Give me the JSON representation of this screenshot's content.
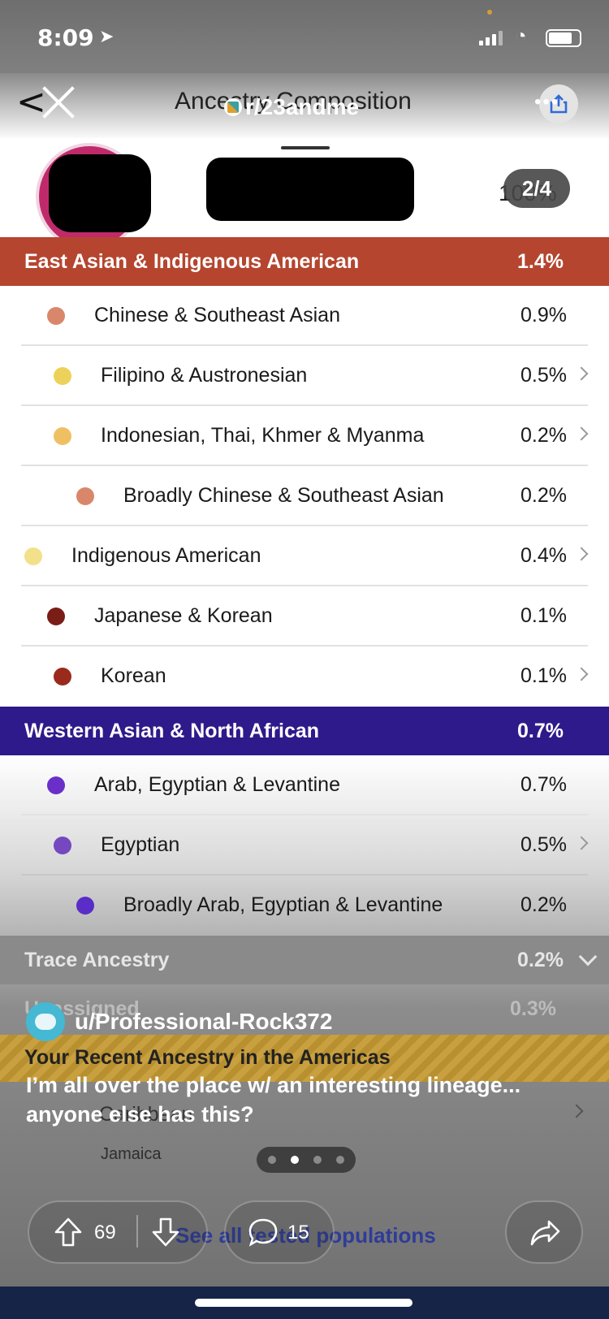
{
  "status_bar": {
    "time": "8:09"
  },
  "header": {
    "title": "Ancestry Composition",
    "subreddit": "r/23andme"
  },
  "profile": {
    "total_pct": "100%"
  },
  "carousel": {
    "counter": "2/4",
    "current": 2,
    "total": 4
  },
  "regions": {
    "east": {
      "label": "East Asian & Indigenous American",
      "pct": "1.4%",
      "color": "#b5452f",
      "rows": [
        {
          "label": "Chinese & Southeast Asian",
          "pct": "0.9%",
          "color": "#d9876a"
        },
        {
          "label": "Filipino & Austronesian",
          "pct": "0.5%",
          "color": "#ecd25a"
        },
        {
          "label": "Indonesian, Thai, Khmer & Myanma",
          "pct": "0.2%",
          "color": "#efc063"
        },
        {
          "label": "Broadly Chinese & Southeast Asian",
          "pct": "0.2%",
          "color": "#d9876a"
        },
        {
          "label": "Indigenous American",
          "pct": "0.4%",
          "color": "#f3e08a"
        },
        {
          "label": "Japanese & Korean",
          "pct": "0.1%",
          "color": "#7a1d17"
        },
        {
          "label": "Korean",
          "pct": "0.1%",
          "color": "#9a2a1c"
        }
      ]
    },
    "west": {
      "label": "Western Asian & North African",
      "pct": "0.7%",
      "color": "#2e1a8a",
      "rows": [
        {
          "label": "Arab, Egyptian & Levantine",
          "pct": "0.7%",
          "color": "#6a2fc8"
        },
        {
          "label": "Egyptian",
          "pct": "0.5%",
          "color": "#7548c0"
        },
        {
          "label": "Broadly Arab, Egyptian & Levantine",
          "pct": "0.2%",
          "color": "#5a2cc8"
        }
      ]
    },
    "trace": {
      "label": "Trace Ancestry",
      "pct": "0.2%"
    },
    "unassigned": {
      "label": "Unassigned",
      "pct": "0.3%"
    }
  },
  "americas": {
    "title": "Your Recent Ancestry in the Americas",
    "region": "Caribbean",
    "place": "Jamaica",
    "see_all": "See all tested populations"
  },
  "reddit": {
    "username": "u/Professional-Rock372",
    "post_text": "I’m all over the place w/ an interesting lineage... anyone else has this?",
    "upvotes": "69",
    "comments": "15"
  }
}
